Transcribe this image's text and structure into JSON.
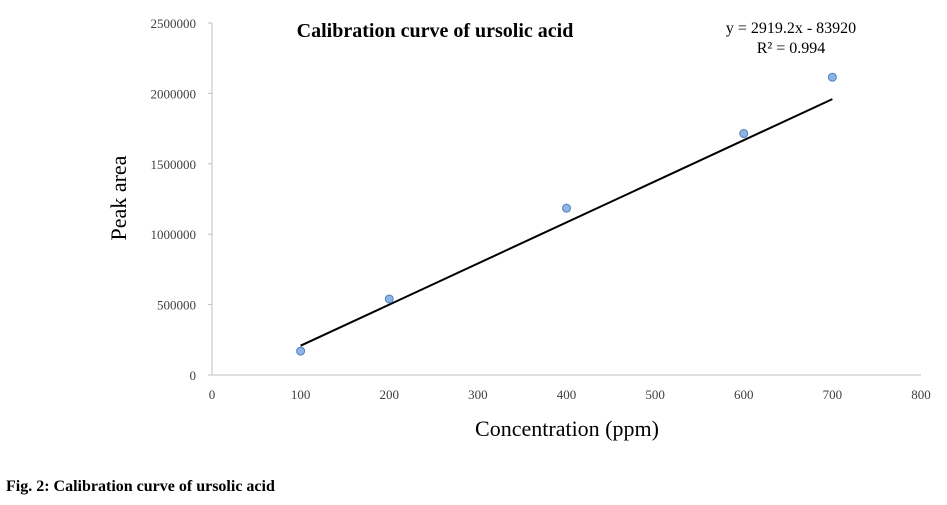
{
  "chart_data": {
    "type": "scatter",
    "title": "Calibration curve of ursolic acid",
    "xlabel": "Concentration (ppm)",
    "ylabel": "Peak area",
    "xlim": [
      0,
      800
    ],
    "ylim": [
      0,
      2500000
    ],
    "x_ticks": [
      "0",
      "100",
      "200",
      "300",
      "400",
      "500",
      "600",
      "700",
      "800"
    ],
    "y_ticks": [
      "0",
      "500000",
      "1000000",
      "1500000",
      "2000000",
      "2500000"
    ],
    "grid": false,
    "legend": "none",
    "series": [
      {
        "x": [
          100,
          200,
          400,
          600,
          700
        ],
        "y": [
          170000,
          540000,
          1185000,
          1715000,
          2115000
        ]
      }
    ],
    "trendline": {
      "slope": 2919.2,
      "intercept": -83920,
      "x_range": [
        100,
        700
      ],
      "equation": "y = 2919.2x - 83920",
      "r_squared": "R² = 0.994"
    },
    "colors": {
      "marker_fill": "#8db4e2",
      "marker_stroke": "#4f81bd",
      "trendline": "#000000",
      "axis": "#bfbfbf"
    }
  },
  "caption": "Fig. 2: Calibration curve of ursolic acid"
}
